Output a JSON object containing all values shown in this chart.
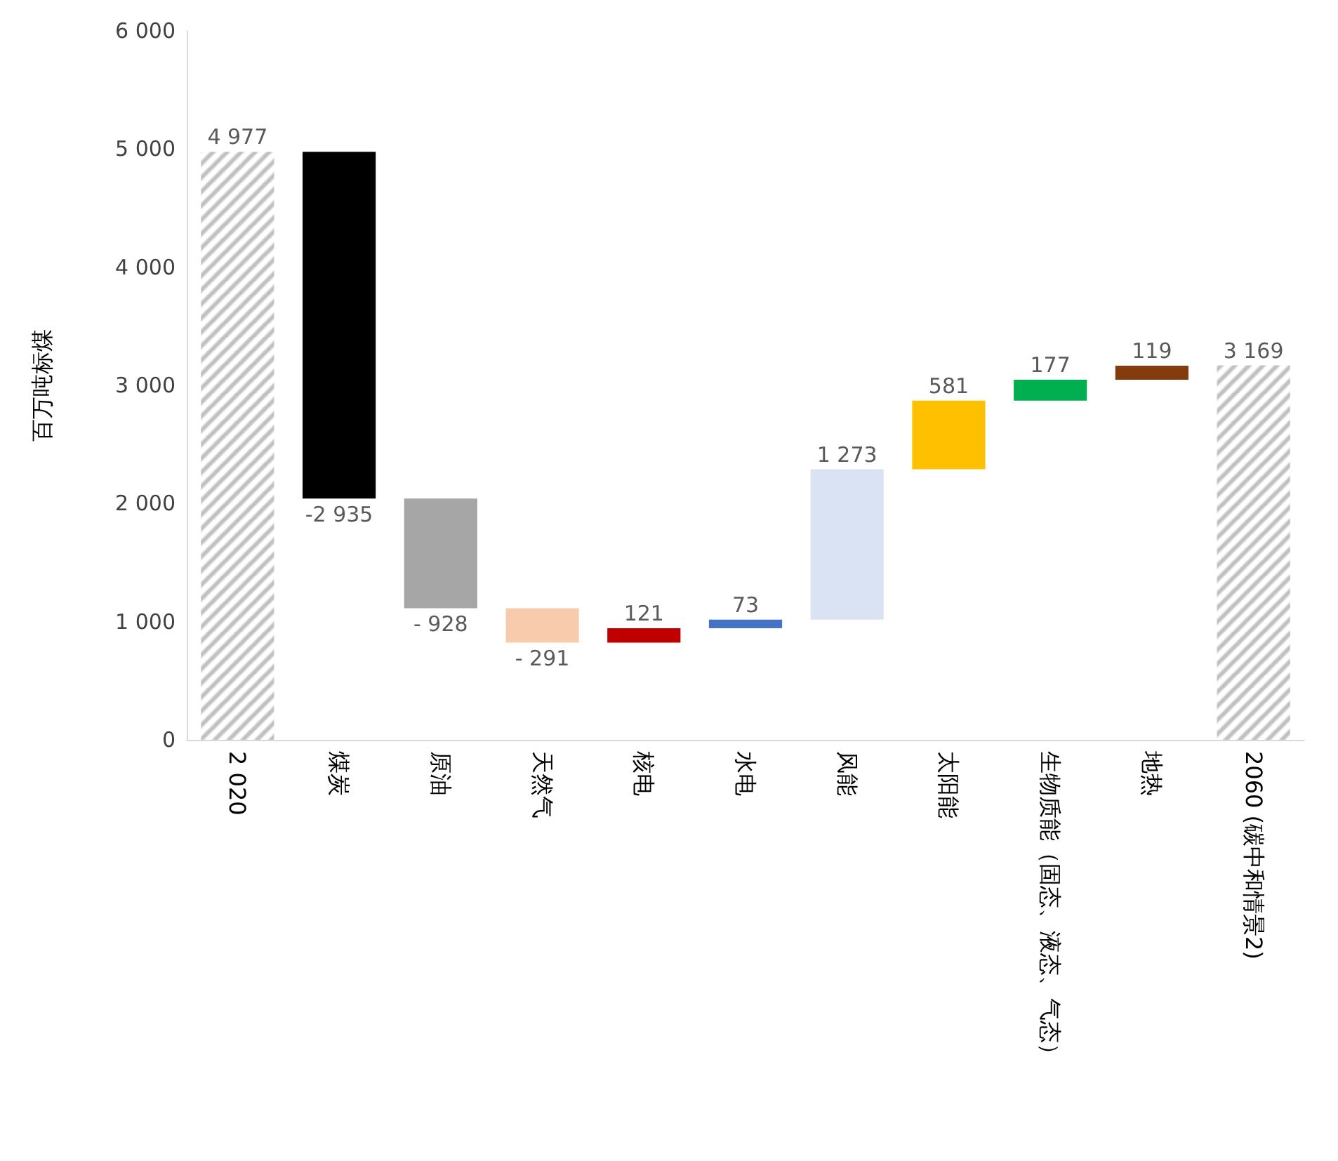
{
  "chart_data": {
    "type": "bar",
    "ylabel": "百万吨标煤",
    "categories": [
      "2 020",
      "煤炭",
      "原油",
      "天然气",
      "核电",
      "水电",
      "风能",
      "太阳能",
      "生物质能（固态、液态、气态）",
      "地热",
      "2060 (碳中和情景2)"
    ],
    "values": [
      4977,
      -2935,
      -928,
      -291,
      121,
      73,
      1273,
      581,
      177,
      119,
      3169
    ],
    "base": [
      0,
      4977,
      2042,
      1114,
      823,
      944,
      1017,
      2290,
      2871,
      3048,
      0
    ],
    "colors": [
      "#bfbfbf",
      "#000000",
      "#a6a6a6",
      "#f8cbad",
      "#c00000",
      "#4472c4",
      "#dae3f3",
      "#ffc000",
      "#00b050",
      "#843c0c",
      "#bfbfbf"
    ],
    "value_labels": [
      "4 977",
      "-2 935",
      "- 928",
      "- 291",
      "121",
      "73",
      "1 273",
      "581",
      "177",
      "119",
      "3 169"
    ],
    "ylim": [
      0,
      6000
    ],
    "yticks": [
      {
        "value": 0,
        "label": "0"
      },
      {
        "value": 1000,
        "label": "1 000"
      },
      {
        "value": 2000,
        "label": "2 000"
      },
      {
        "value": 3000,
        "label": "3 000"
      },
      {
        "value": 4000,
        "label": "4 000"
      },
      {
        "value": 5000,
        "label": "5 000"
      },
      {
        "value": 6000,
        "label": "6 000"
      }
    ],
    "grid": false
  }
}
